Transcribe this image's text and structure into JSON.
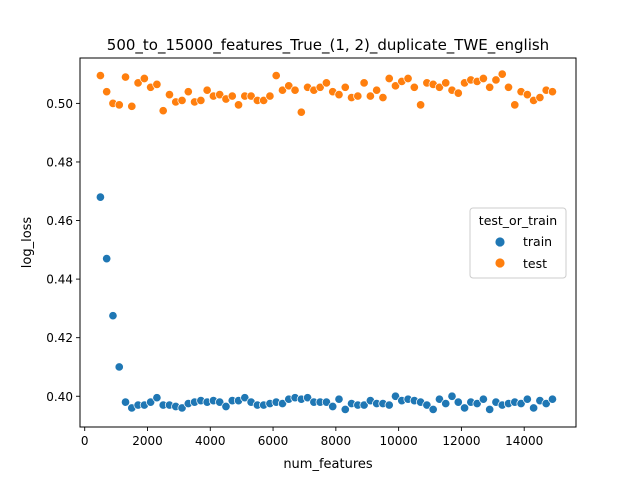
{
  "chart_data": {
    "type": "scatter",
    "title": "500_to_15000_features_True_(1, 2)_duplicate_TWE_english",
    "xlabel": "num_features",
    "ylabel": "log_loss",
    "xlim": [
      -150,
      15650
    ],
    "ylim": [
      0.3895,
      0.5155
    ],
    "xticks": [
      0,
      2000,
      4000,
      6000,
      8000,
      10000,
      12000,
      14000
    ],
    "xtick_labels": [
      "0",
      "2000",
      "4000",
      "6000",
      "8000",
      "10000",
      "12000",
      "14000"
    ],
    "yticks": [
      0.4,
      0.42,
      0.44,
      0.46,
      0.48,
      0.5
    ],
    "ytick_labels": [
      "0.40",
      "0.42",
      "0.44",
      "0.46",
      "0.48",
      "0.50"
    ],
    "grid": false,
    "legend": {
      "title": "test_or_train",
      "placement": "center-right"
    },
    "series": [
      {
        "name": "train",
        "color": "#1f77b4",
        "x": [
          500,
          700,
          900,
          1100,
          1300,
          1500,
          1700,
          1900,
          2100,
          2300,
          2500,
          2700,
          2900,
          3100,
          3300,
          3500,
          3700,
          3900,
          4100,
          4300,
          4500,
          4700,
          4900,
          5100,
          5300,
          5500,
          5700,
          5900,
          6100,
          6300,
          6500,
          6700,
          6900,
          7100,
          7300,
          7500,
          7700,
          7900,
          8100,
          8300,
          8500,
          8700,
          8900,
          9100,
          9300,
          9500,
          9700,
          9900,
          10100,
          10300,
          10500,
          10700,
          10900,
          11100,
          11300,
          11500,
          11700,
          11900,
          12100,
          12300,
          12500,
          12700,
          12900,
          13100,
          13300,
          13500,
          13700,
          13900,
          14100,
          14300,
          14500,
          14700,
          14900
        ],
        "y": [
          0.468,
          0.447,
          0.4275,
          0.41,
          0.398,
          0.396,
          0.397,
          0.397,
          0.398,
          0.3995,
          0.397,
          0.397,
          0.3965,
          0.396,
          0.3975,
          0.398,
          0.3985,
          0.398,
          0.3985,
          0.398,
          0.3965,
          0.3985,
          0.3985,
          0.3995,
          0.398,
          0.397,
          0.397,
          0.3975,
          0.398,
          0.3975,
          0.399,
          0.3995,
          0.399,
          0.3995,
          0.398,
          0.398,
          0.398,
          0.3965,
          0.399,
          0.3955,
          0.3975,
          0.397,
          0.397,
          0.3985,
          0.3975,
          0.3975,
          0.397,
          0.4,
          0.3985,
          0.399,
          0.3985,
          0.398,
          0.397,
          0.3955,
          0.399,
          0.3975,
          0.4,
          0.398,
          0.396,
          0.398,
          0.3975,
          0.399,
          0.3955,
          0.398,
          0.397,
          0.3975,
          0.398,
          0.3975,
          0.399,
          0.396,
          0.3985,
          0.3975,
          0.399
        ]
      },
      {
        "name": "test",
        "color": "#ff7f0e",
        "x": [
          500,
          700,
          900,
          1100,
          1300,
          1500,
          1700,
          1900,
          2100,
          2300,
          2500,
          2700,
          2900,
          3100,
          3300,
          3500,
          3700,
          3900,
          4100,
          4300,
          4500,
          4700,
          4900,
          5100,
          5300,
          5500,
          5700,
          5900,
          6100,
          6300,
          6500,
          6700,
          6900,
          7100,
          7300,
          7500,
          7700,
          7900,
          8100,
          8300,
          8500,
          8700,
          8900,
          9100,
          9300,
          9500,
          9700,
          9900,
          10100,
          10300,
          10500,
          10700,
          10900,
          11100,
          11300,
          11500,
          11700,
          11900,
          12100,
          12300,
          12500,
          12700,
          12900,
          13100,
          13300,
          13500,
          13700,
          13900,
          14100,
          14300,
          14500,
          14700,
          14900
        ],
        "y": [
          0.5095,
          0.504,
          0.5,
          0.4995,
          0.509,
          0.499,
          0.507,
          0.5085,
          0.5055,
          0.5065,
          0.4975,
          0.503,
          0.5005,
          0.501,
          0.504,
          0.5005,
          0.501,
          0.5045,
          0.5025,
          0.503,
          0.5015,
          0.5025,
          0.4995,
          0.5025,
          0.5025,
          0.501,
          0.501,
          0.5025,
          0.5095,
          0.5045,
          0.506,
          0.5045,
          0.497,
          0.5055,
          0.5045,
          0.5055,
          0.507,
          0.504,
          0.503,
          0.5055,
          0.502,
          0.5025,
          0.507,
          0.5025,
          0.5045,
          0.502,
          0.5085,
          0.506,
          0.5075,
          0.5085,
          0.5055,
          0.4995,
          0.507,
          0.5065,
          0.5055,
          0.507,
          0.5045,
          0.5035,
          0.507,
          0.508,
          0.5075,
          0.5085,
          0.5055,
          0.508,
          0.51,
          0.5055,
          0.4995,
          0.504,
          0.503,
          0.501,
          0.502,
          0.5045,
          0.504
        ]
      }
    ]
  }
}
